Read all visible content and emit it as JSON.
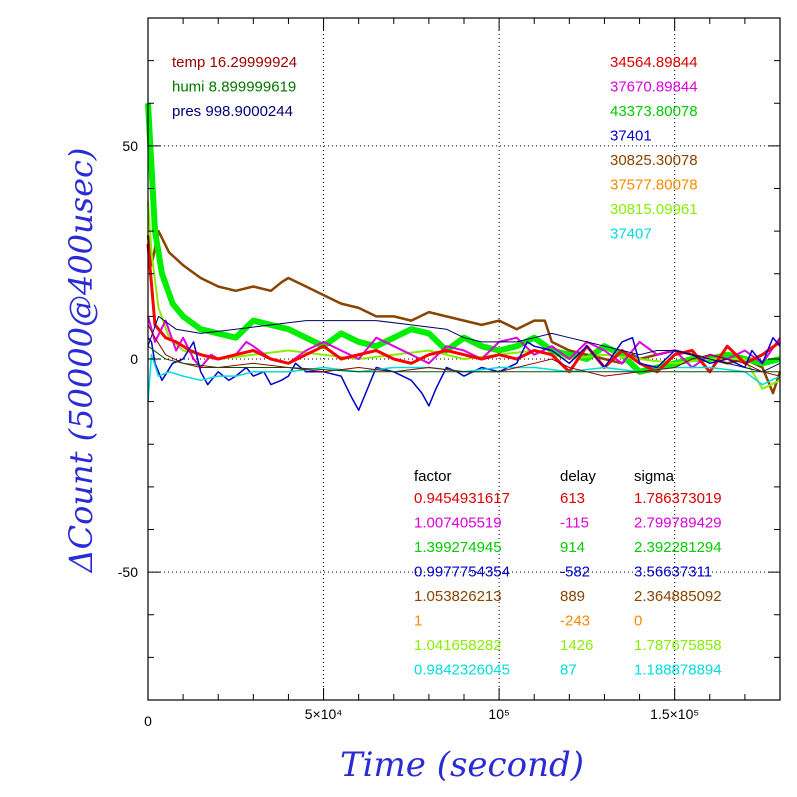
{
  "chart_data": {
    "type": "line",
    "xlabel": "Time (second)",
    "ylabel": "ΔCount (50000@400usec)",
    "xlim": [
      0,
      180000
    ],
    "ylim": [
      -80,
      80
    ],
    "grid": true,
    "x_ticks": [
      {
        "value": 0,
        "label": "0"
      },
      {
        "value": 50000,
        "label": "5×10⁴"
      },
      {
        "value": 100000,
        "label": "10⁵"
      },
      {
        "value": 150000,
        "label": "1.5×10⁵"
      }
    ],
    "y_ticks": [
      {
        "value": 50,
        "label": "50"
      },
      {
        "value": 0,
        "label": "0"
      },
      {
        "value": -50,
        "label": "-50"
      }
    ],
    "env_labels": [
      {
        "text": "temp 16.29999924",
        "color": "#990000"
      },
      {
        "text": "humi 8.899999619",
        "color": "#007700"
      },
      {
        "text": "pres 998.9000244",
        "color": "#000077"
      }
    ],
    "baseline_labels": [
      {
        "text": "34564.89844",
        "color": "#dd0000"
      },
      {
        "text": "37670.89844",
        "color": "#dd00dd"
      },
      {
        "text": "43373.80078",
        "color": "#00cc00"
      },
      {
        "text": "37401",
        "color": "#0000cc"
      },
      {
        "text": "30825.30078",
        "color": "#884400"
      },
      {
        "text": "37577.80078",
        "color": "#ff8800"
      },
      {
        "text": "30815.09961",
        "color": "#88ee00"
      },
      {
        "text": "37407",
        "color": "#00dddd"
      }
    ],
    "stats_headers": {
      "factor": "factor",
      "delay": "delay",
      "sigma": "sigma"
    },
    "stats_rows": [
      {
        "factor": "0.9454931617",
        "delay": "613",
        "sigma": "1.786373019",
        "color": "#dd0000"
      },
      {
        "factor": "1.007405519",
        "delay": "-115",
        "sigma": "2.799789429",
        "color": "#dd00dd"
      },
      {
        "factor": "1.399274945",
        "delay": "914",
        "sigma": "2.392281294",
        "color": "#00cc00"
      },
      {
        "factor": "0.9977754354",
        "delay": "-582",
        "sigma": "3.56637311",
        "color": "#0000cc"
      },
      {
        "factor": "1.053826213",
        "delay": "889",
        "sigma": "2.364885092",
        "color": "#884400"
      },
      {
        "factor": "1",
        "delay": "-243",
        "sigma": "0",
        "color": "#ff8800"
      },
      {
        "factor": "1.041658282",
        "delay": "1426",
        "sigma": "1.787675858",
        "color": "#88ee00"
      },
      {
        "factor": "0.9842326045",
        "delay": "87",
        "sigma": "1.188878894",
        "color": "#00dddd"
      }
    ],
    "series": [
      {
        "color": "#884400",
        "width": 2.5,
        "x": [
          0,
          1000,
          3000,
          6000,
          10000,
          15000,
          20000,
          25000,
          30000,
          35000,
          38000,
          40000,
          45000,
          50000,
          55000,
          60000,
          65000,
          70000,
          75000,
          80000,
          85000,
          90000,
          95000,
          100000,
          105000,
          110000,
          113000,
          115000,
          120000,
          125000,
          130000,
          135000,
          138000,
          140000,
          145000,
          150000,
          155000,
          160000,
          165000,
          170000,
          175000,
          178000,
          180000
        ],
        "y": [
          29,
          22,
          30,
          25,
          22,
          19,
          17,
          16,
          17,
          16,
          18,
          19,
          17,
          15,
          13,
          12,
          10,
          10,
          9,
          11,
          10,
          9,
          8,
          9,
          7,
          9,
          9,
          4,
          2,
          1,
          0,
          -1,
          1,
          0,
          1,
          2,
          1,
          0,
          -1,
          0,
          -2,
          -8,
          -3
        ]
      },
      {
        "color": "#00ee00",
        "width": 6,
        "x": [
          0,
          1000,
          2000,
          4000,
          7000,
          10000,
          15000,
          20000,
          25000,
          30000,
          35000,
          40000,
          45000,
          50000,
          55000,
          60000,
          65000,
          70000,
          75000,
          80000,
          85000,
          90000,
          95000,
          100000,
          105000,
          110000,
          115000,
          120000,
          125000,
          130000,
          135000,
          140000,
          145000,
          150000,
          155000,
          160000,
          165000,
          170000,
          175000,
          180000
        ],
        "y": [
          60,
          45,
          30,
          20,
          13,
          10,
          7,
          6,
          5,
          9,
          8,
          7,
          5,
          3,
          6,
          4,
          3,
          5,
          7,
          6,
          2,
          5,
          3,
          2,
          3,
          5,
          2,
          1,
          0,
          3,
          1,
          -3,
          -2,
          -1,
          0,
          0,
          1,
          0,
          -1,
          0
        ]
      },
      {
        "color": "#88ee00",
        "width": 2,
        "x": [
          0,
          1000,
          3000,
          6000,
          10000,
          15000,
          20000,
          30000,
          40000,
          50000,
          60000,
          70000,
          80000,
          90000,
          100000,
          110000,
          120000,
          130000,
          140000,
          150000,
          160000,
          170000,
          175000,
          180000
        ],
        "y": [
          37,
          25,
          12,
          5,
          2,
          1,
          0,
          1,
          2,
          1,
          0,
          1,
          2,
          0,
          1,
          2,
          0,
          1,
          0,
          -1,
          0,
          0,
          -7,
          -5
        ]
      },
      {
        "color": "#dd00dd",
        "width": 2,
        "x": [
          0,
          2000,
          5000,
          8000,
          10000,
          13000,
          15000,
          18000,
          20000,
          25000,
          28000,
          30000,
          35000,
          40000,
          45000,
          50000,
          55000,
          60000,
          65000,
          70000,
          75000,
          80000,
          85000,
          90000,
          95000,
          100000,
          105000,
          110000,
          115000,
          120000,
          125000,
          130000,
          135000,
          140000,
          145000,
          150000,
          155000,
          160000,
          165000,
          170000,
          175000,
          180000
        ],
        "y": [
          10,
          4,
          9,
          2,
          5,
          0,
          -2,
          1,
          0,
          1,
          4,
          3,
          0,
          -1,
          2,
          4,
          2,
          0,
          5,
          3,
          1,
          -1,
          3,
          2,
          0,
          4,
          5,
          1,
          3,
          0,
          4,
          2,
          -1,
          4,
          1,
          2,
          -2,
          1,
          0,
          2,
          -1,
          5
        ]
      },
      {
        "color": "#ff0000",
        "width": 3,
        "x": [
          0,
          2000,
          5000,
          8000,
          12000,
          15000,
          20000,
          25000,
          30000,
          35000,
          40000,
          45000,
          50000,
          55000,
          60000,
          65000,
          70000,
          75000,
          80000,
          85000,
          90000,
          95000,
          100000,
          105000,
          110000,
          115000,
          120000,
          125000,
          130000,
          135000,
          140000,
          145000,
          150000,
          155000,
          160000,
          165000,
          170000,
          175000,
          180000
        ],
        "y": [
          27,
          8,
          5,
          4,
          2,
          1,
          0,
          1,
          2,
          0,
          -1,
          1,
          3,
          0,
          1,
          2,
          0,
          -1,
          1,
          2,
          1,
          0,
          1,
          0,
          2,
          1,
          -3,
          3,
          -2,
          2,
          -1,
          -3,
          1,
          2,
          -3,
          3,
          -1,
          1,
          4
        ]
      },
      {
        "color": "#0000cc",
        "width": 1.5,
        "x": [
          0,
          1000,
          2000,
          4000,
          7000,
          10000,
          13000,
          15000,
          17000,
          18000,
          20000,
          23000,
          25000,
          28000,
          30000,
          33000,
          35000,
          38000,
          40000,
          42000,
          45000,
          50000,
          55000,
          58000,
          60000,
          62000,
          65000,
          70000,
          75000,
          78000,
          80000,
          82000,
          85000,
          88000,
          90000,
          95000,
          100000,
          105000,
          108000,
          110000,
          115000,
          120000,
          125000,
          130000,
          135000,
          138000,
          140000,
          145000,
          150000,
          155000,
          160000,
          165000,
          170000,
          172000,
          175000,
          178000,
          180000
        ],
        "y": [
          5,
          4,
          -1,
          -5,
          -1,
          0,
          4,
          -3,
          -6,
          -5,
          -3,
          -5,
          -4,
          -2,
          -4,
          -3,
          -6,
          -5,
          -4,
          -1,
          -3,
          -3,
          -4,
          -9,
          -12,
          -8,
          -2,
          -3,
          -5,
          -8,
          -11,
          -7,
          -2,
          -3,
          -4,
          -2,
          -3,
          -1,
          4,
          3,
          2,
          -1,
          3,
          -2,
          4,
          5,
          -1,
          -2,
          2,
          1,
          -1,
          0,
          -2,
          2,
          -1,
          5,
          3
        ]
      },
      {
        "color": "#00dddd",
        "width": 1.5,
        "x": [
          0,
          1000,
          3000,
          6000,
          10000,
          15000,
          20000,
          25000,
          30000,
          40000,
          50000,
          60000,
          70000,
          80000,
          90000,
          100000,
          110000,
          120000,
          130000,
          140000,
          150000,
          160000,
          170000,
          175000,
          180000
        ],
        "y": [
          -10,
          1,
          -4,
          -3,
          -4,
          -5,
          -4,
          -4,
          -3,
          -3,
          -2,
          -3,
          -2,
          -2,
          -3,
          -2,
          -2,
          -3,
          -2,
          -3,
          -2,
          -2,
          -3,
          -6,
          -4
        ]
      },
      {
        "color": "#000066",
        "width": 1,
        "x": [
          0,
          3000,
          8000,
          15000,
          25000,
          35000,
          45000,
          55000,
          65000,
          75000,
          85000,
          90000,
          95000,
          100000,
          105000,
          110000,
          115000,
          120000,
          125000,
          130000,
          135000,
          140000,
          145000,
          150000,
          155000,
          160000,
          165000,
          170000,
          175000,
          180000
        ],
        "y": [
          3,
          10,
          7,
          6,
          7,
          8,
          9,
          9,
          9,
          8,
          7,
          5,
          4,
          4,
          4,
          5,
          6,
          5,
          4,
          3,
          2,
          1,
          2,
          2,
          1,
          0,
          -1,
          -2,
          -3,
          -1
        ]
      },
      {
        "color": "#990000",
        "width": 1,
        "x": [
          0,
          2000,
          5000,
          10000,
          15000,
          20000,
          30000,
          40000,
          50000,
          60000,
          70000,
          80000,
          90000,
          100000,
          105000,
          110000,
          115000,
          120000,
          125000,
          130000,
          140000,
          150000,
          155000,
          160000,
          165000,
          170000,
          175000,
          180000
        ],
        "y": [
          8,
          5,
          1,
          -1,
          -2,
          -2,
          -1,
          -2,
          -3,
          -2,
          -3,
          -2,
          -3,
          -3,
          -2,
          -1,
          0,
          -2,
          -3,
          -4,
          -3,
          -2,
          0,
          1,
          0,
          -1,
          -3,
          -4
        ]
      },
      {
        "color": "#005500",
        "width": 1,
        "x": [
          0,
          5000,
          10000,
          20000,
          40000,
          60000,
          80000,
          100000,
          120000,
          140000,
          160000,
          180000
        ],
        "y": [
          3,
          0,
          -1,
          -2,
          -2,
          -3,
          -3,
          -3,
          -3,
          -3,
          -3,
          -3
        ]
      }
    ]
  }
}
